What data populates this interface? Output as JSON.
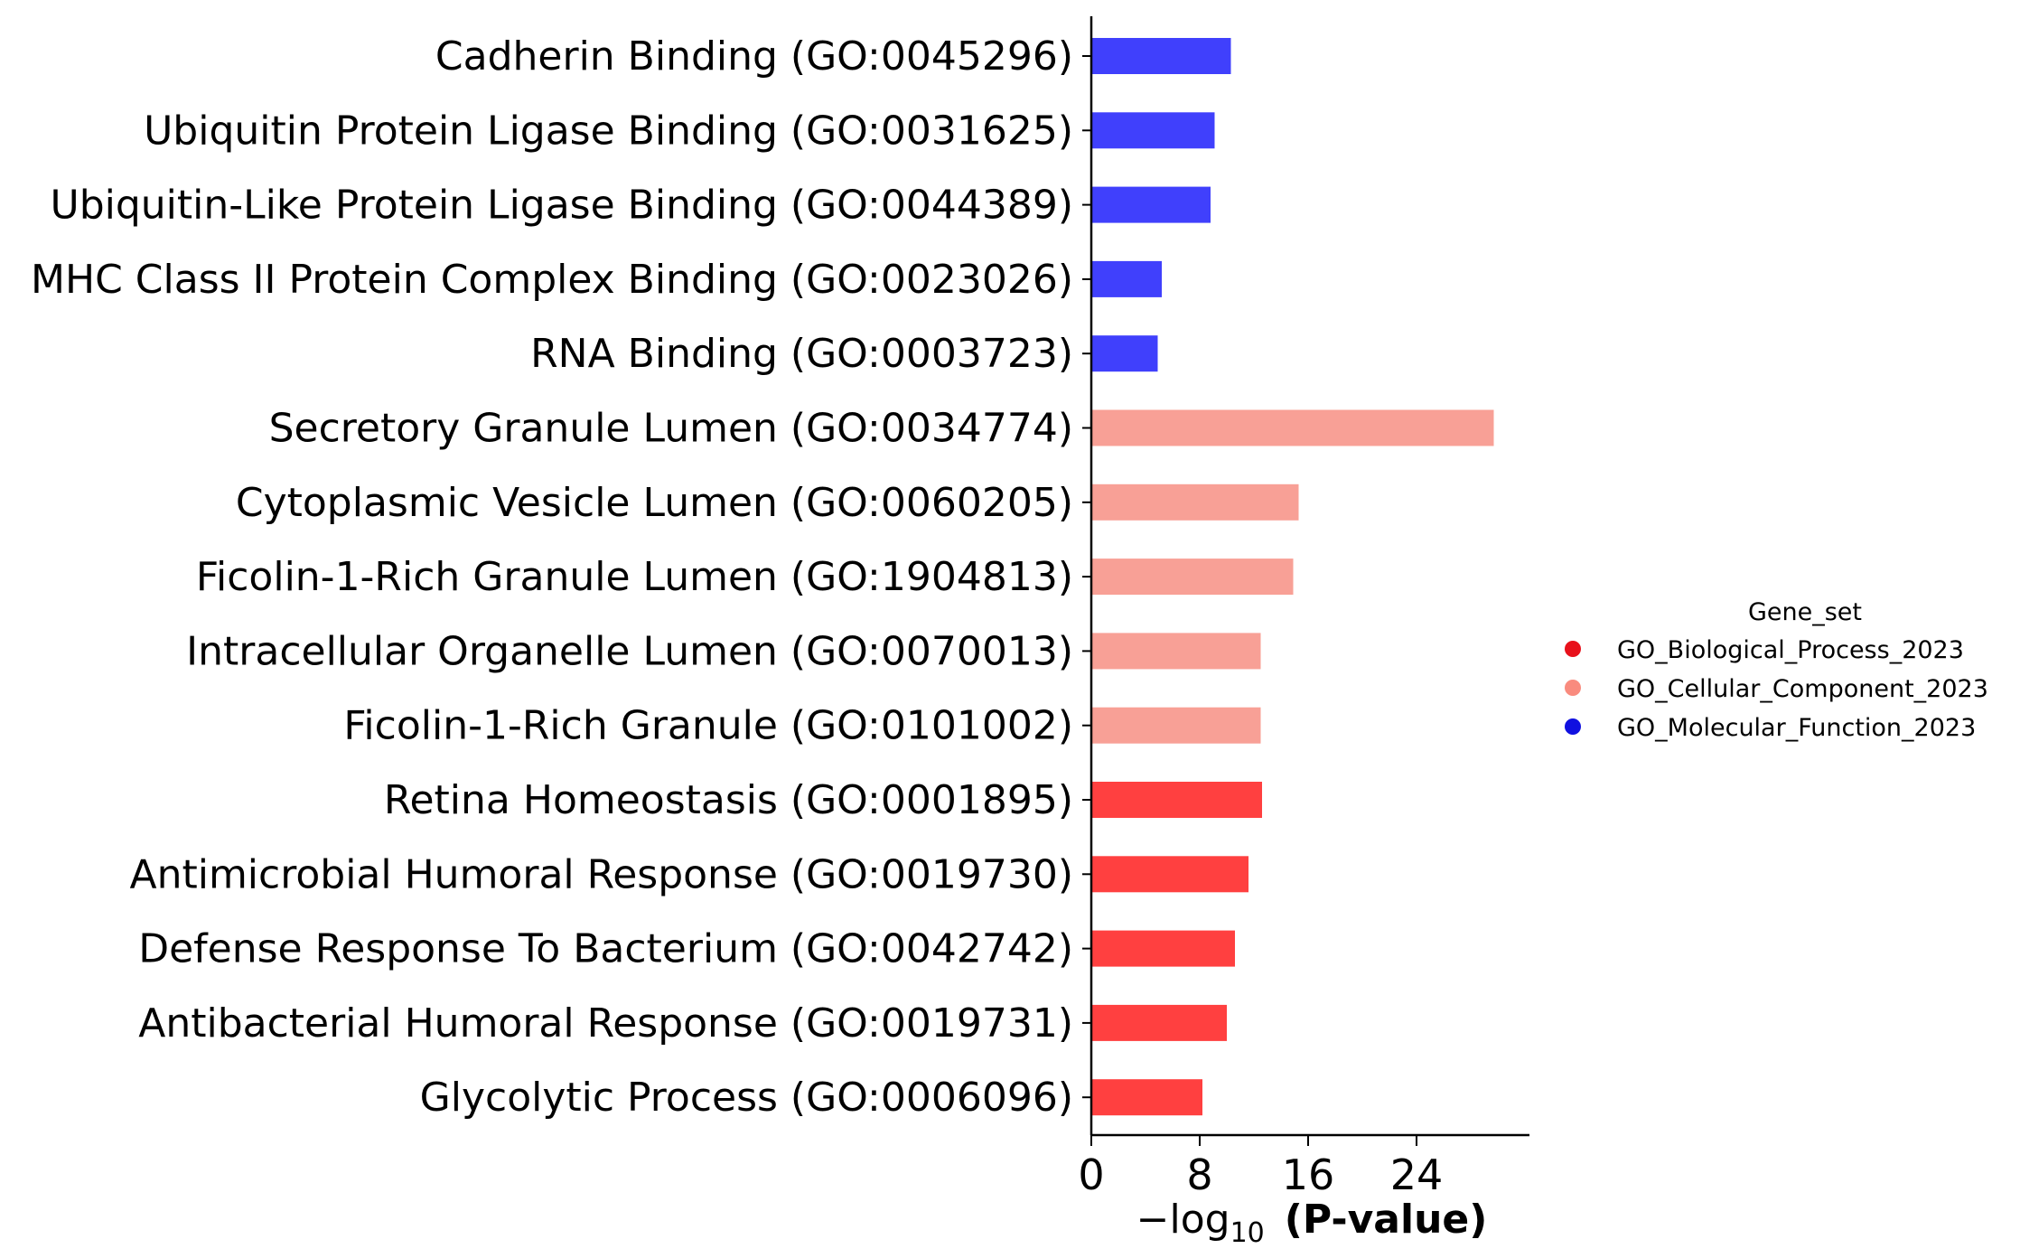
{
  "chart_data": {
    "type": "bar",
    "orientation": "horizontal",
    "title": "",
    "xlabel_prefix": "−log",
    "xlabel_subscript": "10",
    "xlabel_bold": "(P-value)",
    "ylabel": "",
    "xlim": [
      0,
      31
    ],
    "xticks": [
      0,
      8,
      16,
      24
    ],
    "grid": false,
    "legend_title": "Gene_set",
    "legend_position": "right",
    "legend": [
      {
        "name": "GO_Biological_Process_2023",
        "color": "#e8111b"
      },
      {
        "name": "GO_Cellular_Component_2023",
        "color": "#f98b7e"
      },
      {
        "name": "GO_Molecular_Function_2023",
        "color": "#1010e0"
      }
    ],
    "bars": [
      {
        "label": "Cadherin Binding (GO:0045296)",
        "value": 10.3,
        "color": "#4040fc"
      },
      {
        "label": "Ubiquitin Protein Ligase Binding (GO:0031625)",
        "value": 9.1,
        "color": "#4040fc"
      },
      {
        "label": "Ubiquitin-Like Protein Ligase Binding (GO:0044389)",
        "value": 8.8,
        "color": "#4040fc"
      },
      {
        "label": "MHC Class II Protein Complex Binding (GO:0023026)",
        "value": 5.2,
        "color": "#4040fc"
      },
      {
        "label": "RNA Binding (GO:0003723)",
        "value": 4.9,
        "color": "#4040fc"
      },
      {
        "label": "Secretory Granule Lumen (GO:0034774)",
        "value": 29.7,
        "color": "#f8a096"
      },
      {
        "label": "Cytoplasmic Vesicle Lumen (GO:0060205)",
        "value": 15.3,
        "color": "#f8a096"
      },
      {
        "label": "Ficolin-1-Rich Granule Lumen (GO:1904813)",
        "value": 14.9,
        "color": "#f8a096"
      },
      {
        "label": "Intracellular Organelle Lumen (GO:0070013)",
        "value": 12.5,
        "color": "#f8a096"
      },
      {
        "label": "Ficolin-1-Rich Granule (GO:0101002)",
        "value": 12.5,
        "color": "#f8a096"
      },
      {
        "label": "Retina Homeostasis (GO:0001895)",
        "value": 12.6,
        "color": "#ff4040"
      },
      {
        "label": "Antimicrobial Humoral Response (GO:0019730)",
        "value": 11.6,
        "color": "#ff4040"
      },
      {
        "label": "Defense Response To Bacterium (GO:0042742)",
        "value": 10.6,
        "color": "#ff4040"
      },
      {
        "label": "Antibacterial Humoral Response (GO:0019731)",
        "value": 10.0,
        "color": "#ff4040"
      },
      {
        "label": "Glycolytic Process (GO:0006096)",
        "value": 8.2,
        "color": "#ff4040"
      }
    ]
  }
}
